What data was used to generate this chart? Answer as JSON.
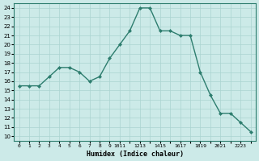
{
  "x": [
    0,
    1,
    2,
    3,
    4,
    5,
    6,
    7,
    8,
    9,
    10,
    11,
    12,
    13,
    14,
    15,
    16,
    17,
    18,
    19,
    20,
    21,
    22,
    23
  ],
  "y": [
    15.5,
    15.5,
    15.5,
    16.5,
    17.5,
    17.5,
    17.0,
    16.0,
    16.5,
    18.5,
    20.0,
    21.5,
    24.0,
    24.0,
    21.5,
    21.5,
    21.0,
    21.0,
    17.0,
    14.5,
    12.5,
    12.5,
    11.5,
    10.5
  ],
  "line_color": "#2d7d6e",
  "marker_color": "#2d7d6e",
  "bg_color": "#cceae8",
  "grid_color": "#aad4d0",
  "xlabel": "Humidex (Indice chaleur)",
  "ylim": [
    9.5,
    24.5
  ],
  "xlim": [
    -0.5,
    23.5
  ],
  "xtick_positions": [
    0,
    1,
    2,
    3,
    4,
    5,
    6,
    7,
    8,
    9,
    10,
    11,
    12,
    13,
    14,
    15,
    16,
    17,
    18,
    19,
    20,
    21,
    22,
    23
  ],
  "xtick_labels": [
    "0",
    "1",
    "2",
    "3",
    "4",
    "5",
    "6",
    "7",
    "8",
    "9",
    "10",
    "11",
    "12",
    "13",
    "14",
    "15",
    "16",
    "17",
    "18",
    "19",
    "20",
    "21",
    "22",
    "23"
  ]
}
